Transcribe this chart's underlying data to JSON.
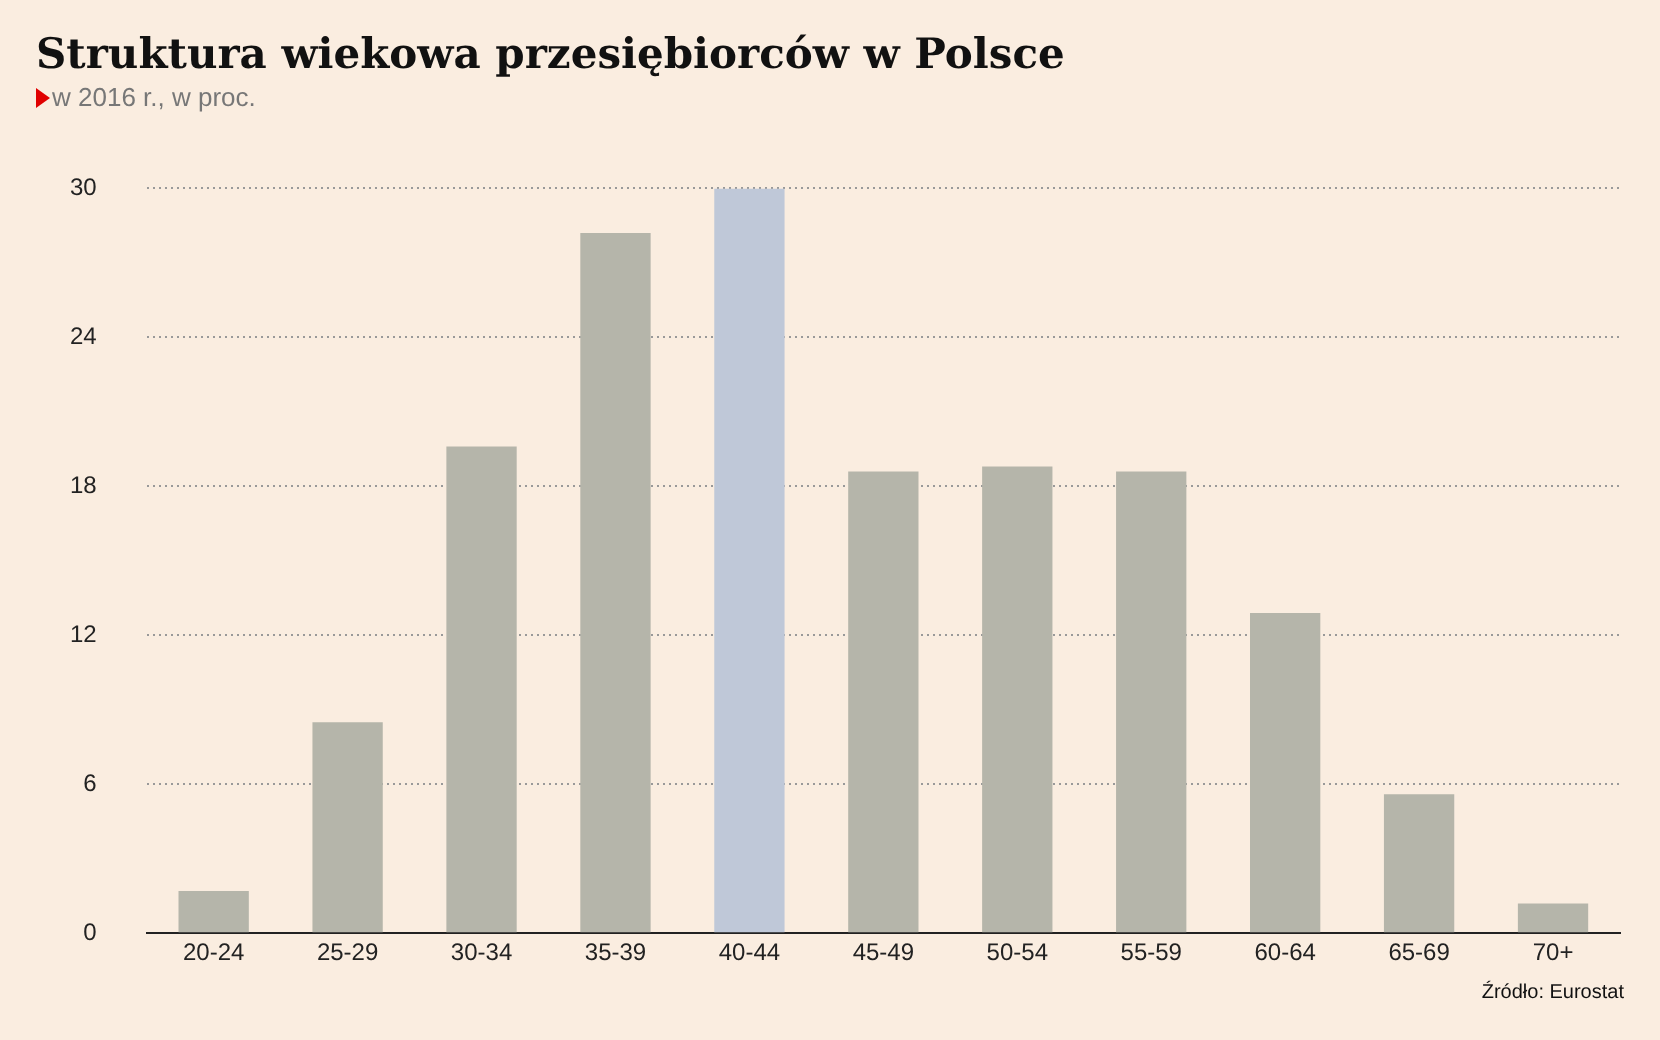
{
  "chart_data": {
    "type": "bar",
    "title": "Struktura wiekowa przesiębiorców w Polsce",
    "subtitle": "w 2016 r., w proc.",
    "categories": [
      "20-24",
      "25-29",
      "30-34",
      "35-39",
      "40-44",
      "45-49",
      "50-54",
      "55-59",
      "60-64",
      "65-69",
      "70+"
    ],
    "values": [
      1.7,
      8.5,
      19.6,
      28.2,
      30,
      18.6,
      18.8,
      18.6,
      12.9,
      5.6,
      1.2
    ],
    "colors": [
      "#b5b5aa",
      "#b5b5aa",
      "#b5b5aa",
      "#b5b5aa",
      "#bfc8d8",
      "#b5b5aa",
      "#b5b5aa",
      "#b5b5aa",
      "#b5b5aa",
      "#b5b5aa",
      "#b5b5aa"
    ],
    "ylim": [
      0,
      30
    ],
    "yticks": [
      0,
      6,
      12,
      18,
      24,
      30
    ],
    "grid": "y",
    "annotations": [
      "Źródło: Eurostat"
    ]
  }
}
